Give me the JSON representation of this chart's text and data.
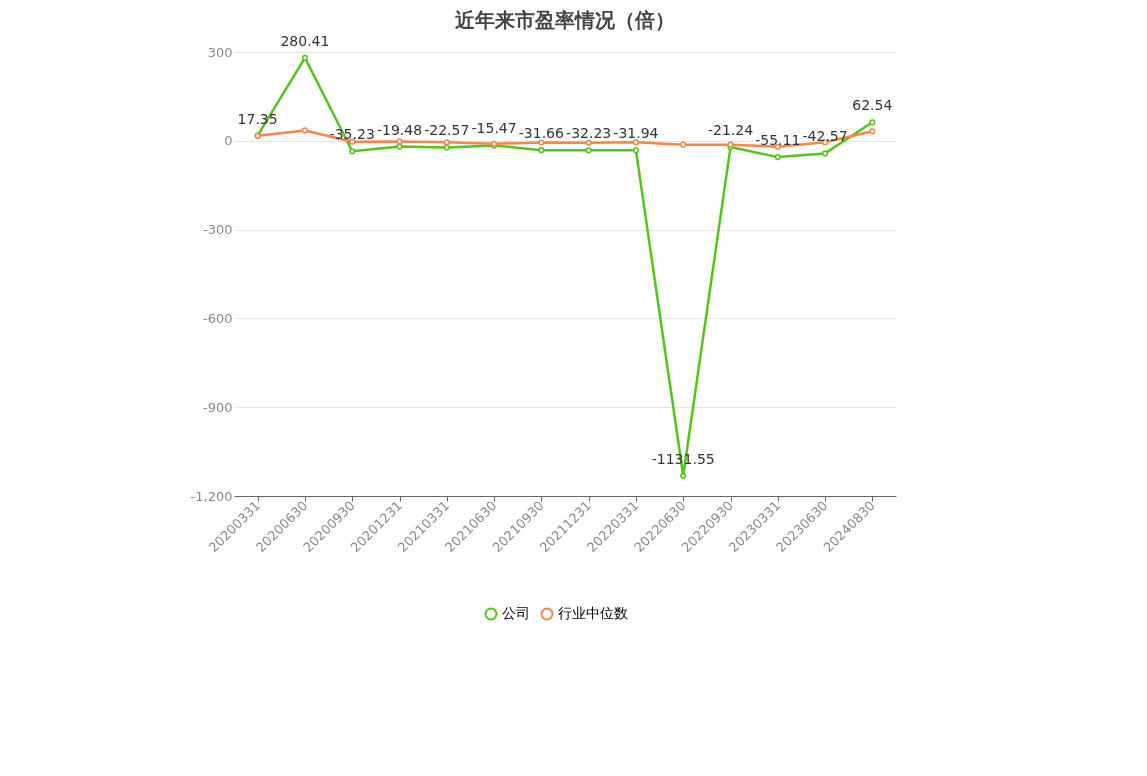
{
  "chart_data": {
    "type": "line",
    "title": "近年来市盈率情况（倍）",
    "categories": [
      "20200331",
      "20200630",
      "20200930",
      "20201231",
      "20210331",
      "20210630",
      "20210930",
      "20211231",
      "20220331",
      "20220630",
      "20220930",
      "20230331",
      "20230630",
      "20240830"
    ],
    "series": [
      {
        "name": "公司",
        "color": "#52c41a",
        "values": [
          17.35,
          280.41,
          -35.23,
          -19.48,
          -22.57,
          -15.47,
          -31.66,
          -32.23,
          -31.94,
          -1131.55,
          -21.24,
          -55.11,
          -42.57,
          62.54
        ],
        "value_labels": [
          "17.35",
          "280.41",
          "-35.23",
          "-19.48",
          "-22.57",
          "-15.47",
          "-31.66",
          "-32.23",
          "-31.94",
          "-1131.55",
          "-21.24",
          "-55.11",
          "-42.57",
          "62.54"
        ]
      },
      {
        "name": "行业中位数",
        "color": "#f5854a",
        "values": [
          17,
          35,
          -3,
          -2,
          -5,
          -10,
          -6,
          -7,
          -5,
          -13,
          -13,
          -20,
          -5,
          32
        ]
      }
    ],
    "ylim": [
      -1200,
      300
    ],
    "yticks": [
      {
        "value": -1200,
        "label": "-1,200"
      },
      -900,
      -600,
      -300,
      0,
      300
    ],
    "grid": "y",
    "legend": "bottom",
    "marker": "circle",
    "line_style": "solid"
  }
}
